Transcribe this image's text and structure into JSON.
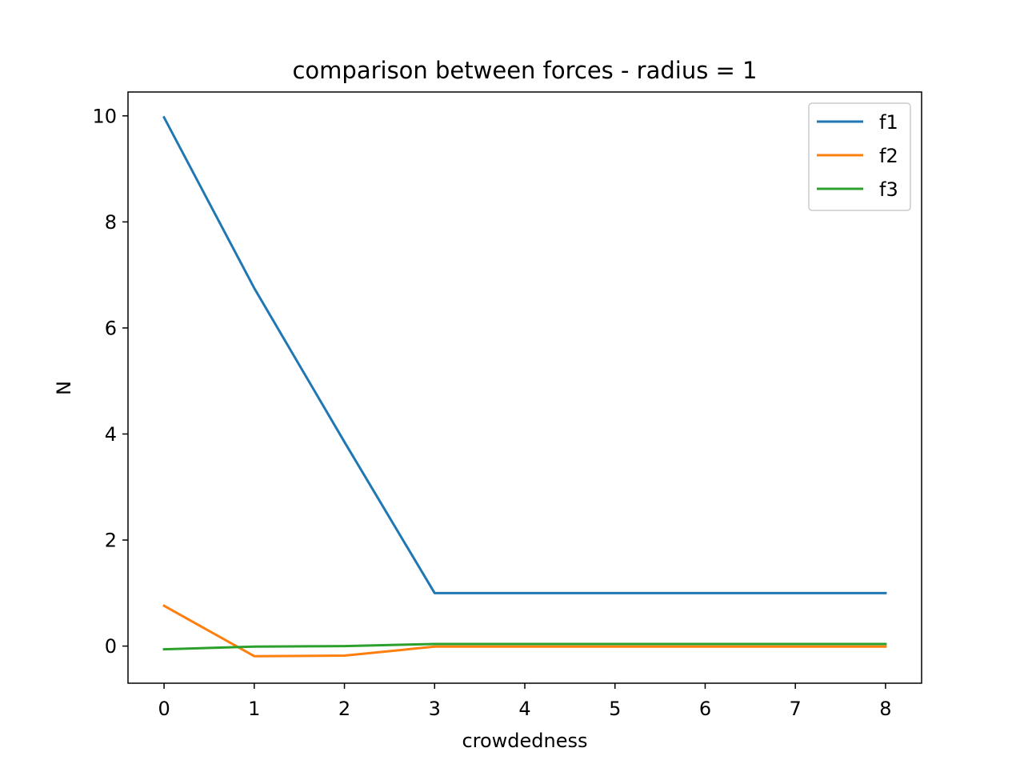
{
  "chart_data": {
    "type": "line",
    "title": "comparison between forces - radius = 1",
    "xlabel": "crowdedness",
    "ylabel": "N",
    "x": [
      0,
      1,
      2,
      3,
      4,
      5,
      6,
      7,
      8
    ],
    "xlim": [
      -0.4,
      8.4
    ],
    "ylim": [
      -0.7,
      10.45
    ],
    "xticks": [
      0,
      1,
      2,
      3,
      4,
      5,
      6,
      7,
      8
    ],
    "yticks": [
      0,
      2,
      4,
      6,
      8,
      10
    ],
    "grid": false,
    "legend_position": "top-right",
    "series": [
      {
        "name": "f1",
        "color": "#1f77b4",
        "values": [
          9.97,
          6.75,
          3.85,
          1.0,
          1.0,
          1.0,
          1.0,
          1.0,
          1.0
        ]
      },
      {
        "name": "f2",
        "color": "#ff7f0e",
        "values": [
          0.76,
          -0.19,
          -0.18,
          -0.01,
          -0.01,
          -0.01,
          -0.01,
          -0.01,
          -0.01
        ]
      },
      {
        "name": "f3",
        "color": "#2ca02c",
        "values": [
          -0.06,
          -0.01,
          0.0,
          0.04,
          0.04,
          0.04,
          0.04,
          0.04,
          0.04
        ]
      }
    ]
  }
}
